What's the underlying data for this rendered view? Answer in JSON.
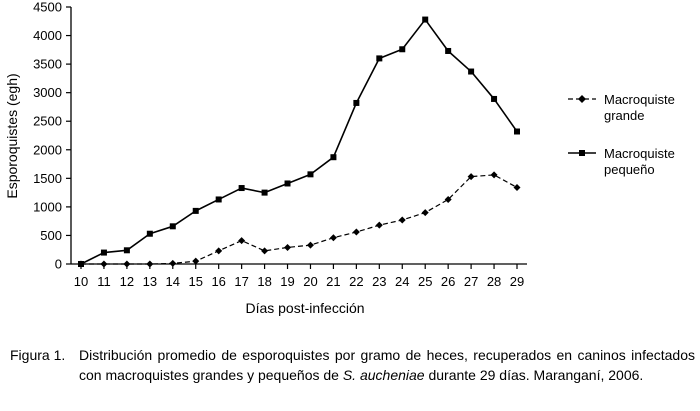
{
  "chart_data": {
    "type": "line",
    "title": "",
    "xlabel": "Días post-infección",
    "ylabel": "Esporoquistes (egh)",
    "x": [
      10,
      11,
      12,
      13,
      14,
      15,
      16,
      17,
      18,
      19,
      20,
      21,
      22,
      23,
      24,
      25,
      26,
      27,
      28,
      29
    ],
    "ylim": [
      0,
      4500
    ],
    "yticks": [
      0,
      500,
      1000,
      1500,
      2000,
      2500,
      3000,
      3500,
      4000,
      4500
    ],
    "grid": false,
    "legend_position": "right",
    "series": [
      {
        "name": "Macroquiste grande",
        "line_style": "dashed",
        "marker": "diamond",
        "color": "#000000",
        "values": [
          0,
          0,
          0,
          0,
          10,
          50,
          230,
          410,
          230,
          290,
          330,
          460,
          560,
          680,
          770,
          900,
          1130,
          1530,
          1560,
          1340
        ]
      },
      {
        "name": "Macroquiste pequeño",
        "line_style": "solid",
        "marker": "square",
        "color": "#000000",
        "values": [
          0,
          200,
          240,
          530,
          660,
          930,
          1130,
          1330,
          1250,
          1410,
          1570,
          1870,
          2820,
          3600,
          3760,
          4280,
          3730,
          3370,
          2890,
          2320
        ]
      }
    ],
    "legend": [
      {
        "line1": "Macroquiste",
        "line2": "grande"
      },
      {
        "line1": "Macroquiste",
        "line2": "pequeño"
      }
    ]
  },
  "caption": {
    "label": "Figura 1.",
    "text_before_italic": "Distribución promedio de esporoquistes por gramo de heces, recuperados en caninos infectados con macroquistes grandes y pequeños de ",
    "italic": "S. aucheniae",
    "text_after_italic": " durante 29 días. Maranganí, 2006."
  }
}
